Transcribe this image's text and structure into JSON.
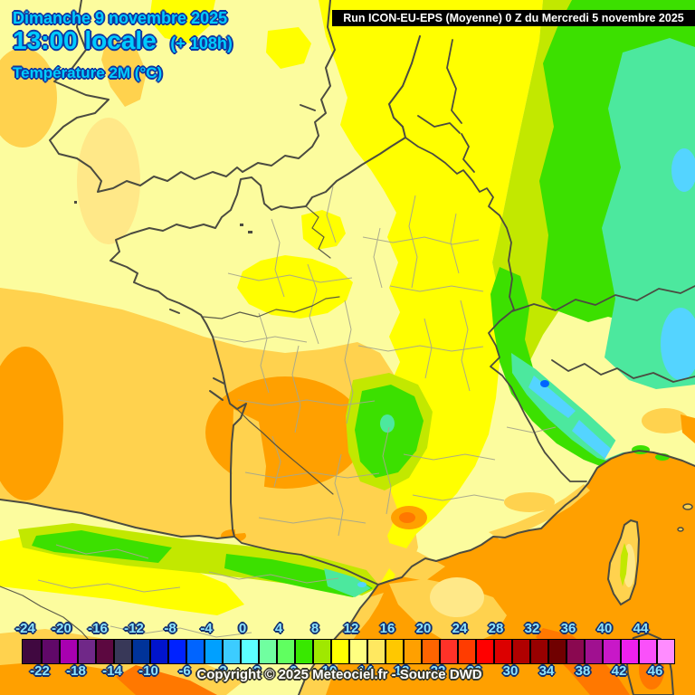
{
  "header": {
    "date_line": "Dimanche 9 novembre 2025",
    "time_line": "13:00 locale",
    "offset_label": "(+ 108h)",
    "param_label": "Température 2M (°C)",
    "text_color": "#00ccff"
  },
  "run_box": {
    "text": "Run ICON-EU-EPS (Moyenne) 0 Z du Mercredi 5 novembre 2025",
    "bg": "#000000",
    "color": "#ffffff"
  },
  "footer": {
    "copyright": "Copyright © 2025 Meteociel.fr - Source DWD"
  },
  "scale": {
    "unit": "°C",
    "label_color": "#8ce4ff",
    "top_labels": [
      "-24",
      "-20",
      "-16",
      "-12",
      "-8",
      "-4",
      "0",
      "4",
      "8",
      "12",
      "16",
      "20",
      "24",
      "28",
      "32",
      "36",
      "40",
      "44"
    ],
    "bottom_labels": [
      "-22",
      "-18",
      "-14",
      "-10",
      "-6",
      "-2",
      "2",
      "6",
      "10",
      "14",
      "18",
      "22",
      "26",
      "30",
      "34",
      "38",
      "42",
      "46"
    ],
    "cell_colors": [
      "#400840",
      "#600868",
      "#a800b0",
      "#702888",
      "#5c0840",
      "#383858",
      "#003399",
      "#0014cc",
      "#0022ff",
      "#0064ff",
      "#00a0ff",
      "#3cccff",
      "#5cffff",
      "#70ffa0",
      "#60ff60",
      "#38e800",
      "#a0e800",
      "#ffff00",
      "#ffff80",
      "#ffe860",
      "#ffc800",
      "#ffa000",
      "#ff6400",
      "#ff3228",
      "#ff3c00",
      "#ff0000",
      "#dc0000",
      "#b00000",
      "#980000",
      "#700000",
      "#8a0850",
      "#a01090",
      "#c818c8",
      "#ee20ee",
      "#fa50fa",
      "#ff8cff"
    ]
  },
  "map": {
    "description": "Prévision température 2M sur la France (ICON-EU-EPS)",
    "palette": {
      "pale_yellow": "#fcfc9e",
      "yellow": "#ffff00",
      "yellow_green": "#c2e800",
      "green": "#3ce000",
      "mint": "#4ce89e",
      "cyan": "#54d4ff",
      "blue": "#0064ff",
      "gold": "#ffd24e",
      "light_gold": "#ffe888",
      "orange": "#ffa000",
      "deep_orange": "#ff7800",
      "coast": "#4b4b40",
      "department": "#a8a88c"
    }
  }
}
